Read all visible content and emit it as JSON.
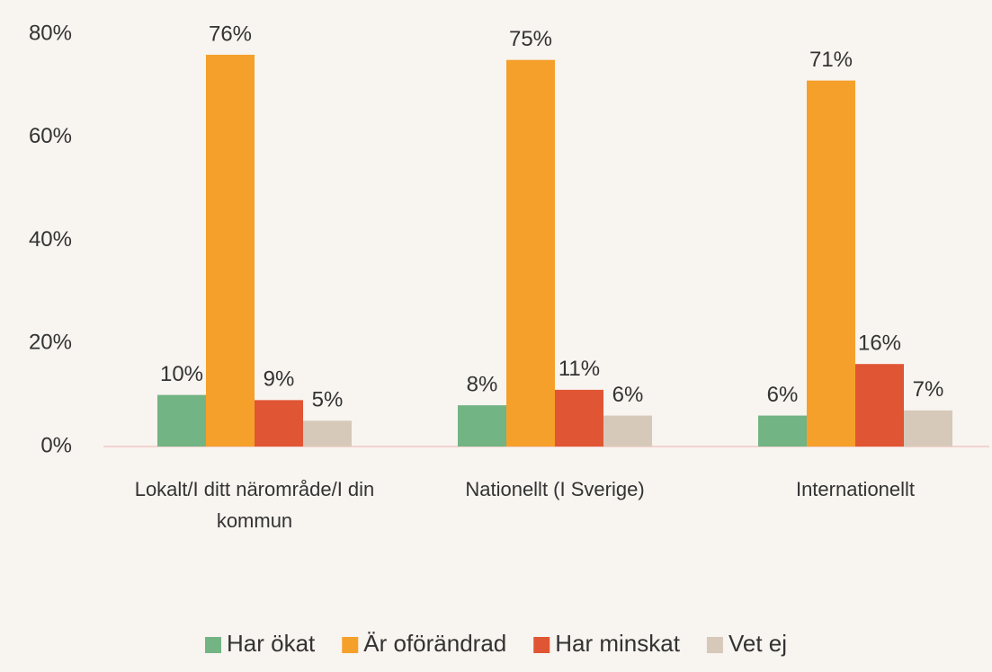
{
  "chart_data": {
    "type": "bar",
    "categories": [
      "Lokalt/I ditt närområde/I din kommun",
      "Nationellt (I Sverige)",
      "Internationellt"
    ],
    "series": [
      {
        "name": "Har ökat",
        "color": "#72b483",
        "values": [
          10,
          8,
          6
        ],
        "value_labels": [
          "10%",
          "8%",
          "6%"
        ]
      },
      {
        "name": "Är oförändrad",
        "color": "#f5a02a",
        "values": [
          76,
          75,
          71
        ],
        "value_labels": [
          "76%",
          "75%",
          "71%"
        ]
      },
      {
        "name": "Har minskat",
        "color": "#e05533",
        "values": [
          9,
          11,
          16
        ],
        "value_labels": [
          "9%",
          "11%",
          "16%"
        ]
      },
      {
        "name": "Vet ej",
        "color": "#d6c9b9",
        "values": [
          5,
          6,
          7
        ],
        "value_labels": [
          "5%",
          "6%",
          "7%"
        ]
      }
    ],
    "ylim": [
      0,
      80
    ],
    "yticks": [
      {
        "value": 0,
        "label": "0%"
      },
      {
        "value": 20,
        "label": "20%"
      },
      {
        "value": 40,
        "label": "40%"
      },
      {
        "value": 60,
        "label": "60%"
      },
      {
        "value": 80,
        "label": "80%"
      }
    ],
    "grid": false,
    "legend": "bottom"
  }
}
